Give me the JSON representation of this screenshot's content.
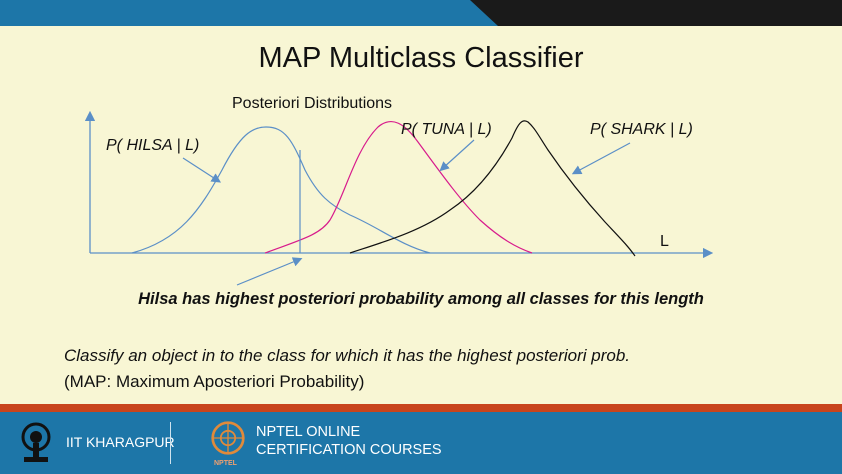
{
  "slide": {
    "title": "MAP Multiclass Classifier"
  },
  "diagram": {
    "heading": "Posteriori Distributions",
    "axis_label": "L",
    "curve_labels": {
      "hilsa": "P( HILSA | L)",
      "tuna": "P( TUNA | L)",
      "shark": "P( SHARK | L)"
    },
    "colors": {
      "hilsa": "#5b8fc7",
      "tuna": "#d81b8c",
      "shark": "#111111",
      "axis": "#5b8fc7"
    }
  },
  "captions": {
    "highlight": "Hilsa has highest posteriori probability among all classes for this length",
    "rule": "Classify an object in to the class for which it has the highest posteriori prob.",
    "map_def": "(MAP: Maximum Aposteriori Probability)"
  },
  "footer": {
    "institute": "IIT KHARAGPUR",
    "nptel_line1": "NPTEL ONLINE",
    "nptel_line2": "CERTIFICATION COURSES",
    "nptel_small": "NPTEL"
  }
}
